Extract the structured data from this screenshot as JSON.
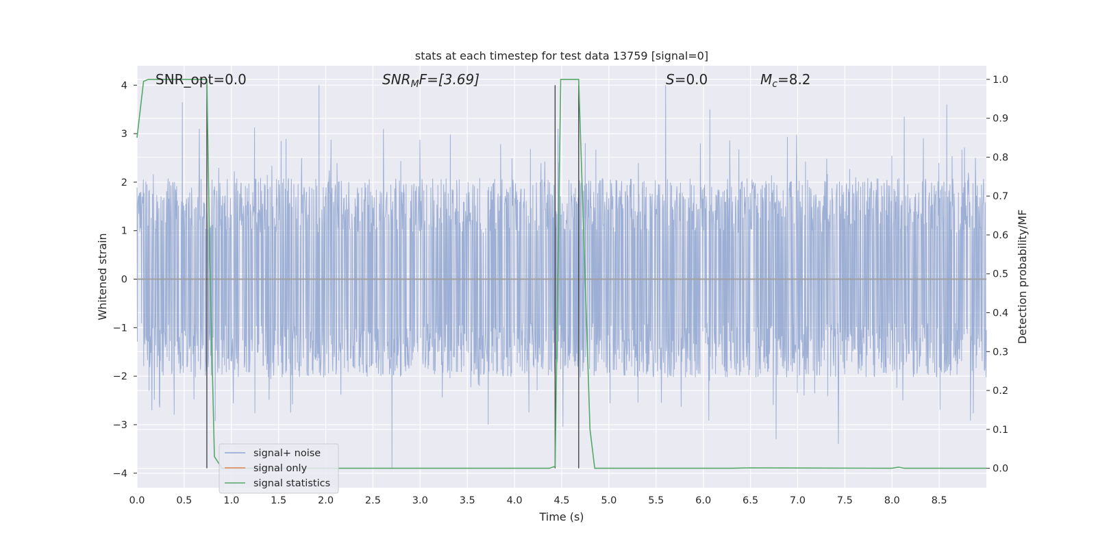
{
  "chart_data": {
    "type": "line",
    "title": "stats at each timestep for test data 13759 [signal=0]",
    "xlabel": "Time (s)",
    "ylabel": "Whitened strain",
    "y2label": "Detection probability/MF",
    "xlim": [
      0.0,
      9.0
    ],
    "ylim": [
      -4.3,
      4.4
    ],
    "y2lim": [
      -0.05,
      1.035
    ],
    "x_ticks": [
      "0.0",
      "0.5",
      "1.0",
      "1.5",
      "2.0",
      "2.5",
      "3.0",
      "3.5",
      "4.0",
      "4.5",
      "5.0",
      "5.5",
      "6.0",
      "6.5",
      "7.0",
      "7.5",
      "8.0",
      "8.5"
    ],
    "y_ticks": [
      "−4",
      "−3",
      "−2",
      "−1",
      "0",
      "1",
      "2",
      "3",
      "4"
    ],
    "y2_ticks": [
      "0.0",
      "0.1",
      "0.2",
      "0.3",
      "0.4",
      "0.5",
      "0.6",
      "0.7",
      "0.8",
      "0.9",
      "1.0"
    ],
    "grid": true,
    "legend_position": "lower-left",
    "annotations": {
      "snr_opt": "SNR_opt=0.0",
      "snr_mf_sym": "SNR",
      "snr_mf_sub": "M",
      "snr_mf_rest": "F=[3.69]",
      "s_sym": "S",
      "s_rest": "=0.0",
      "mc_sym": "M",
      "mc_sub": "c",
      "mc_rest": "=8.2"
    },
    "vertical_markers": [
      0.74,
      4.43,
      4.68
    ],
    "series": [
      {
        "name": "signal+ noise",
        "color": "#8fa4cf",
        "description_values": {
          "typical_upper_envelope": 1.6,
          "typical_lower_envelope": -1.5,
          "peak_values": [
            [
              0.48,
              3.65
            ],
            [
              0.66,
              3.1
            ],
            [
              1.93,
              4.0
            ],
            [
              2.7,
              -3.9
            ],
            [
              4.46,
              3.1
            ],
            [
              5.6,
              4.0
            ],
            [
              6.07,
              3.5
            ],
            [
              6.77,
              -3.3
            ],
            [
              7.43,
              -3.4
            ],
            [
              8.13,
              3.35
            ],
            [
              8.58,
              3.6
            ]
          ]
        }
      },
      {
        "name": "signal only",
        "color": "#dd8452",
        "x": [
          0.0,
          9.0
        ],
        "y": [
          0.0,
          0.0
        ]
      },
      {
        "name": "signal statistics",
        "color": "#55a868",
        "axis": "y2",
        "x": [
          0.0,
          0.07,
          0.12,
          0.7,
          0.74,
          0.77,
          0.82,
          0.9,
          4.37,
          4.43,
          4.49,
          4.68,
          4.8,
          4.85,
          6.3,
          6.5,
          8.0,
          8.07,
          8.13,
          8.5,
          9.0
        ],
        "y": [
          0.85,
          0.995,
          1.0,
          1.0,
          1.0,
          0.55,
          0.03,
          0.0,
          0.0,
          0.005,
          1.0,
          1.0,
          0.1,
          0.0,
          0.0,
          0.001,
          0.0,
          0.003,
          0.0,
          0.0,
          0.0
        ]
      }
    ]
  }
}
